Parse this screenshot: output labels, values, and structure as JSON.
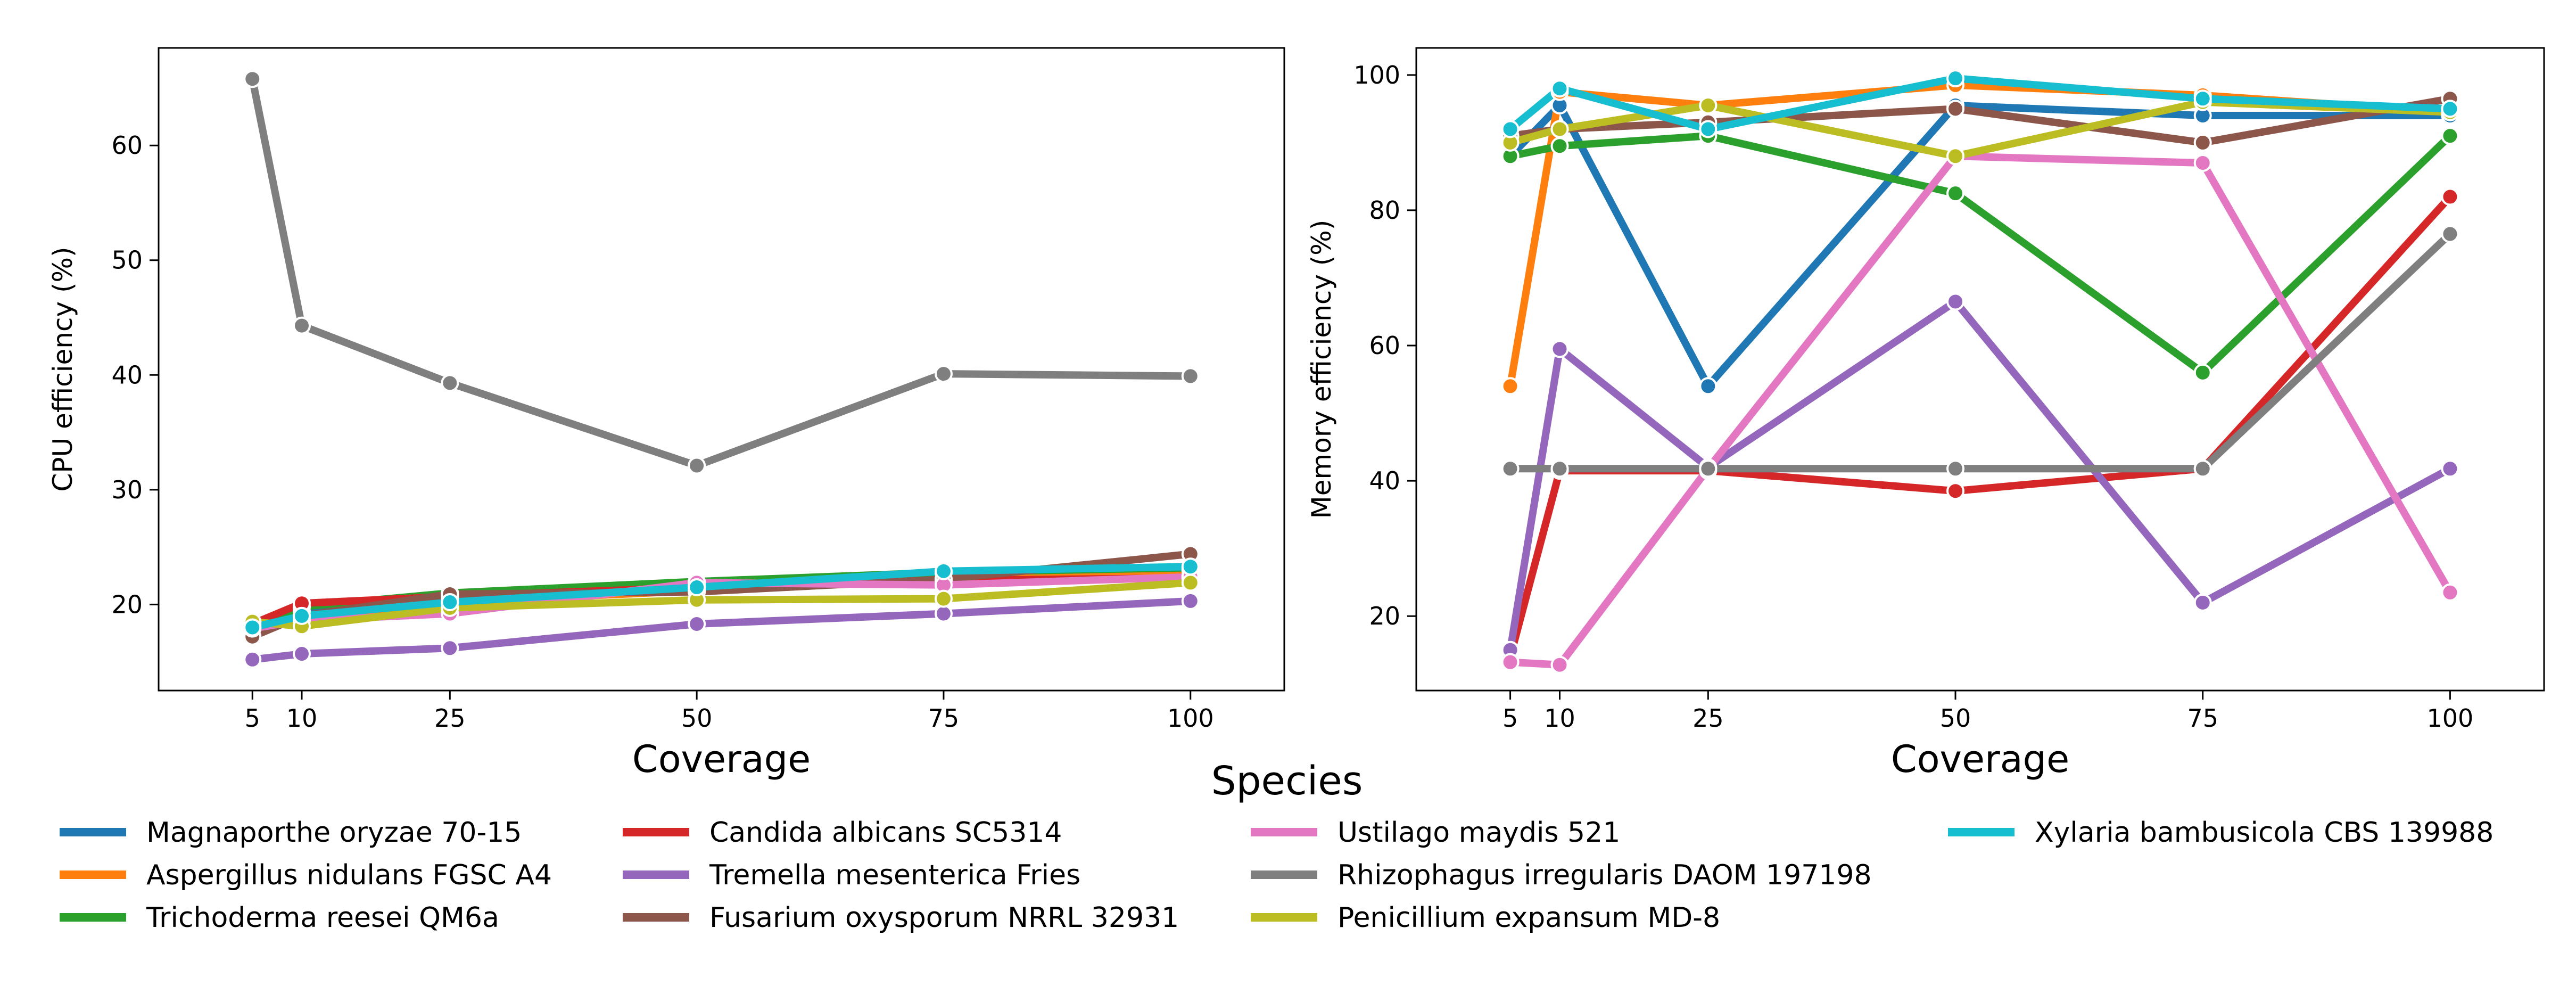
{
  "legend": {
    "title": "Species"
  },
  "chart_data": [
    {
      "type": "line",
      "xlabel": "Coverage",
      "ylabel": "CPU efficiency (%)",
      "x": [
        5,
        10,
        25,
        50,
        75,
        100
      ],
      "xlim": [
        -4.5,
        109.5
      ],
      "ylim": [
        12.5,
        68.5
      ],
      "yticks": [
        20,
        30,
        40,
        50,
        60
      ],
      "grid": false,
      "series": [
        {
          "name": "Magnaporthe oryzae 70-15",
          "color": "#1f77b4",
          "values": [
            18.2,
            19.4,
            20.6,
            21.6,
            22.8,
            22.5
          ]
        },
        {
          "name": "Aspergillus nidulans FGSC A4",
          "color": "#ff7f0e",
          "values": [
            18.5,
            18.9,
            20.2,
            21.2,
            22.2,
            23.0
          ]
        },
        {
          "name": "Trichoderma reesei QM6a",
          "color": "#2ca02c",
          "values": [
            18.0,
            19.8,
            21.0,
            22.0,
            22.8,
            23.2
          ]
        },
        {
          "name": "Candida albicans SC5314",
          "color": "#d62728",
          "values": [
            18.3,
            20.1,
            20.7,
            21.5,
            22.1,
            22.3
          ]
        },
        {
          "name": "Tremella mesenterica Fries",
          "color": "#9467bd",
          "values": [
            15.2,
            15.7,
            16.2,
            18.3,
            19.2,
            20.3
          ]
        },
        {
          "name": "Fusarium oxysporum NRRL 32931",
          "color": "#8c564b",
          "values": [
            17.2,
            19.0,
            20.9,
            21.1,
            22.2,
            24.4
          ]
        },
        {
          "name": "Ustilago maydis 521",
          "color": "#e377c2",
          "values": [
            17.9,
            18.6,
            19.2,
            21.9,
            21.7,
            22.4
          ]
        },
        {
          "name": "Rhizophagus irregularis DAOM 197198",
          "color": "#7f7f7f",
          "values": [
            65.8,
            44.3,
            39.3,
            32.1,
            40.1,
            39.9
          ]
        },
        {
          "name": "Penicillium expansum MD-8",
          "color": "#bcbd22",
          "values": [
            18.5,
            18.1,
            19.7,
            20.4,
            20.5,
            21.9
          ]
        },
        {
          "name": "Xylaria bambusicola CBS 139988",
          "color": "#17becf",
          "values": [
            18.0,
            19.0,
            20.2,
            21.5,
            22.9,
            23.3
          ]
        }
      ]
    },
    {
      "type": "line",
      "xlabel": "Coverage",
      "ylabel": "Memory efficiency (%)",
      "x": [
        5,
        10,
        25,
        50,
        75,
        100
      ],
      "xlim": [
        -4.5,
        109.5
      ],
      "ylim": [
        9.0,
        104.0
      ],
      "yticks": [
        20,
        40,
        60,
        80,
        100
      ],
      "grid": false,
      "series": [
        {
          "name": "Magnaporthe oryzae 70-15",
          "color": "#1f77b4",
          "values": [
            88.0,
            95.5,
            54.0,
            95.5,
            94.0,
            94.0
          ]
        },
        {
          "name": "Aspergillus nidulans FGSC A4",
          "color": "#ff7f0e",
          "values": [
            54.0,
            97.5,
            95.5,
            98.5,
            97.0,
            94.5
          ]
        },
        {
          "name": "Trichoderma reesei QM6a",
          "color": "#2ca02c",
          "values": [
            88.0,
            89.5,
            91.0,
            82.5,
            56.0,
            91.0
          ]
        },
        {
          "name": "Candida albicans SC5314",
          "color": "#d62728",
          "values": [
            14.0,
            41.5,
            41.5,
            38.5,
            41.8,
            82.0
          ]
        },
        {
          "name": "Tremella mesenterica Fries",
          "color": "#9467bd",
          "values": [
            15.0,
            59.5,
            42.0,
            66.5,
            22.0,
            41.8
          ]
        },
        {
          "name": "Fusarium oxysporum NRRL 32931",
          "color": "#8c564b",
          "values": [
            91.0,
            92.0,
            93.0,
            95.0,
            90.0,
            96.5
          ]
        },
        {
          "name": "Ustilago maydis 521",
          "color": "#e377c2",
          "values": [
            13.2,
            12.8,
            41.8,
            88.0,
            87.0,
            23.5
          ]
        },
        {
          "name": "Rhizophagus irregularis DAOM 197198",
          "color": "#7f7f7f",
          "values": [
            41.8,
            41.8,
            41.8,
            41.8,
            41.8,
            76.5
          ]
        },
        {
          "name": "Penicillium expansum MD-8",
          "color": "#bcbd22",
          "values": [
            90.0,
            92.0,
            95.5,
            88.0,
            96.0,
            94.5
          ]
        },
        {
          "name": "Xylaria bambusicola CBS 139988",
          "color": "#17becf",
          "values": [
            92.0,
            98.0,
            92.0,
            99.5,
            96.5,
            95.0
          ]
        }
      ]
    }
  ]
}
